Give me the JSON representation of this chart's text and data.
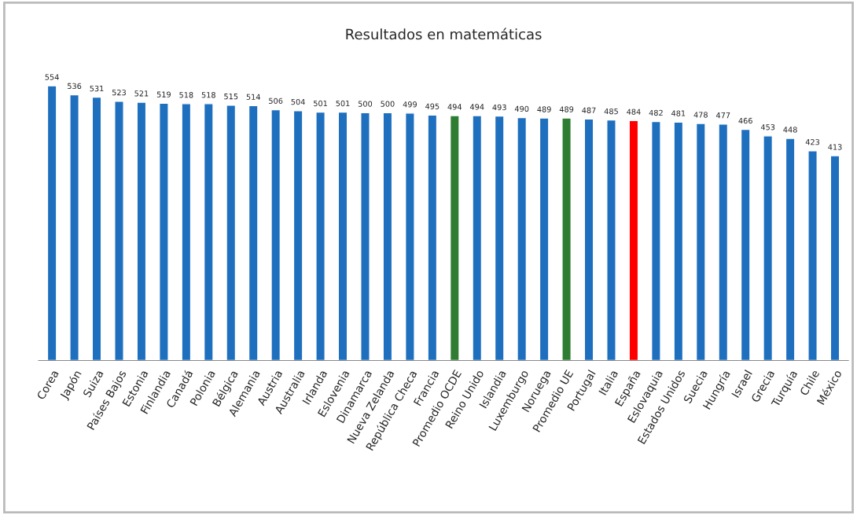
{
  "chart_data": {
    "type": "bar",
    "title": "Resultados en matemáticas",
    "categories": [
      "Corea",
      "Japón",
      "Suiza",
      "Países Bajos",
      "Estonia",
      "Finlandia",
      "Canadá",
      "Polonia",
      "Bélgica",
      "Alemania",
      "Austria",
      "Australia",
      "Irlanda",
      "Eslovenia",
      "Dinamarca",
      "Nueva Zelanda",
      "República Checa",
      "Francia",
      "Promedio OCDE",
      "Reino Unido",
      "Islandia",
      "Luxemburgo",
      "Noruega",
      "Promedio UE",
      "Portugal",
      "Italia",
      "España",
      "Eslovaquia",
      "Estados Unidos",
      "Suecia",
      "Hungría",
      "Israel",
      "Grecia",
      "Turquía",
      "Chile",
      "México"
    ],
    "values": [
      554,
      536,
      531,
      523,
      521,
      519,
      518,
      518,
      515,
      514,
      506,
      504,
      501,
      501,
      500,
      500,
      499,
      495,
      494,
      494,
      493,
      490,
      489,
      489,
      487,
      485,
      484,
      482,
      481,
      478,
      477,
      466,
      453,
      448,
      423,
      413
    ],
    "colors": [
      "#1f6fbf",
      "#1f6fbf",
      "#1f6fbf",
      "#1f6fbf",
      "#1f6fbf",
      "#1f6fbf",
      "#1f6fbf",
      "#1f6fbf",
      "#1f6fbf",
      "#1f6fbf",
      "#1f6fbf",
      "#1f6fbf",
      "#1f6fbf",
      "#1f6fbf",
      "#1f6fbf",
      "#1f6fbf",
      "#1f6fbf",
      "#1f6fbf",
      "#2e7d32",
      "#1f6fbf",
      "#1f6fbf",
      "#1f6fbf",
      "#1f6fbf",
      "#2e7d32",
      "#1f6fbf",
      "#1f6fbf",
      "#ff0000",
      "#1f6fbf",
      "#1f6fbf",
      "#1f6fbf",
      "#1f6fbf",
      "#1f6fbf",
      "#1f6fbf",
      "#1f6fbf",
      "#1f6fbf",
      "#1f6fbf"
    ],
    "data_labels": true,
    "tick_labels": "x",
    "grid": false
  }
}
